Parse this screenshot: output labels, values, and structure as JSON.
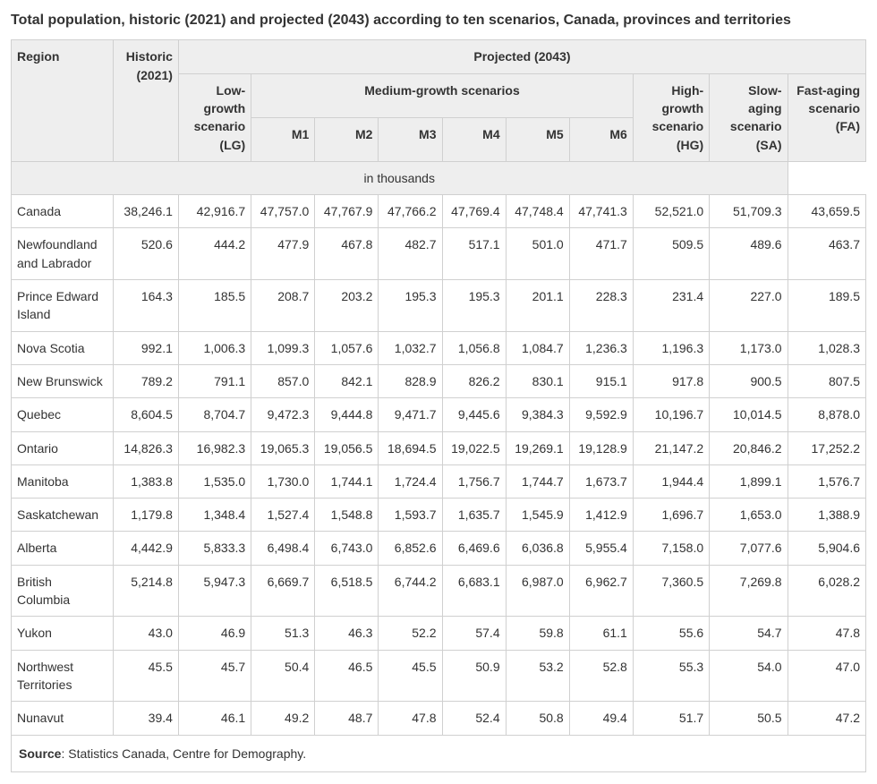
{
  "title": "Total population, historic (2021) and projected (2043) according to ten scenarios, Canada, provinces and territories",
  "headers": {
    "region": "Region",
    "historic": "Historic (2021)",
    "projected": "Projected (2043)",
    "lg": "Low-growth scenario (LG)",
    "medium": "Medium-growth scenarios",
    "m1": "M1",
    "m2": "M2",
    "m3": "M3",
    "m4": "M4",
    "m5": "M5",
    "m6": "M6",
    "hg": "High-growth scenario (HG)",
    "sa": "Slow-aging scenario (SA)",
    "fa": "Fast-aging scenario (FA)",
    "units": "in thousands"
  },
  "rows": [
    {
      "region": "Canada",
      "hist": "38,246.1",
      "lg": "42,916.7",
      "m1": "47,757.0",
      "m2": "47,767.9",
      "m3": "47,766.2",
      "m4": "47,769.4",
      "m5": "47,748.4",
      "m6": "47,741.3",
      "hg": "52,521.0",
      "sa": "51,709.3",
      "fa": "43,659.5"
    },
    {
      "region": "Newfoundland and Labrador",
      "hist": "520.6",
      "lg": "444.2",
      "m1": "477.9",
      "m2": "467.8",
      "m3": "482.7",
      "m4": "517.1",
      "m5": "501.0",
      "m6": "471.7",
      "hg": "509.5",
      "sa": "489.6",
      "fa": "463.7"
    },
    {
      "region": "Prince Edward Island",
      "hist": "164.3",
      "lg": "185.5",
      "m1": "208.7",
      "m2": "203.2",
      "m3": "195.3",
      "m4": "195.3",
      "m5": "201.1",
      "m6": "228.3",
      "hg": "231.4",
      "sa": "227.0",
      "fa": "189.5"
    },
    {
      "region": "Nova Scotia",
      "hist": "992.1",
      "lg": "1,006.3",
      "m1": "1,099.3",
      "m2": "1,057.6",
      "m3": "1,032.7",
      "m4": "1,056.8",
      "m5": "1,084.7",
      "m6": "1,236.3",
      "hg": "1,196.3",
      "sa": "1,173.0",
      "fa": "1,028.3"
    },
    {
      "region": "New Brunswick",
      "hist": "789.2",
      "lg": "791.1",
      "m1": "857.0",
      "m2": "842.1",
      "m3": "828.9",
      "m4": "826.2",
      "m5": "830.1",
      "m6": "915.1",
      "hg": "917.8",
      "sa": "900.5",
      "fa": "807.5"
    },
    {
      "region": "Quebec",
      "hist": "8,604.5",
      "lg": "8,704.7",
      "m1": "9,472.3",
      "m2": "9,444.8",
      "m3": "9,471.7",
      "m4": "9,445.6",
      "m5": "9,384.3",
      "m6": "9,592.9",
      "hg": "10,196.7",
      "sa": "10,014.5",
      "fa": "8,878.0"
    },
    {
      "region": "Ontario",
      "hist": "14,826.3",
      "lg": "16,982.3",
      "m1": "19,065.3",
      "m2": "19,056.5",
      "m3": "18,694.5",
      "m4": "19,022.5",
      "m5": "19,269.1",
      "m6": "19,128.9",
      "hg": "21,147.2",
      "sa": "20,846.2",
      "fa": "17,252.2"
    },
    {
      "region": "Manitoba",
      "hist": "1,383.8",
      "lg": "1,535.0",
      "m1": "1,730.0",
      "m2": "1,744.1",
      "m3": "1,724.4",
      "m4": "1,756.7",
      "m5": "1,744.7",
      "m6": "1,673.7",
      "hg": "1,944.4",
      "sa": "1,899.1",
      "fa": "1,576.7"
    },
    {
      "region": "Saskatchewan",
      "hist": "1,179.8",
      "lg": "1,348.4",
      "m1": "1,527.4",
      "m2": "1,548.8",
      "m3": "1,593.7",
      "m4": "1,635.7",
      "m5": "1,545.9",
      "m6": "1,412.9",
      "hg": "1,696.7",
      "sa": "1,653.0",
      "fa": "1,388.9"
    },
    {
      "region": "Alberta",
      "hist": "4,442.9",
      "lg": "5,833.3",
      "m1": "6,498.4",
      "m2": "6,743.0",
      "m3": "6,852.6",
      "m4": "6,469.6",
      "m5": "6,036.8",
      "m6": "5,955.4",
      "hg": "7,158.0",
      "sa": "7,077.6",
      "fa": "5,904.6"
    },
    {
      "region": "British Columbia",
      "hist": "5,214.8",
      "lg": "5,947.3",
      "m1": "6,669.7",
      "m2": "6,518.5",
      "m3": "6,744.2",
      "m4": "6,683.1",
      "m5": "6,987.0",
      "m6": "6,962.7",
      "hg": "7,360.5",
      "sa": "7,269.8",
      "fa": "6,028.2"
    },
    {
      "region": "Yukon",
      "hist": "43.0",
      "lg": "46.9",
      "m1": "51.3",
      "m2": "46.3",
      "m3": "52.2",
      "m4": "57.4",
      "m5": "59.8",
      "m6": "61.1",
      "hg": "55.6",
      "sa": "54.7",
      "fa": "47.8"
    },
    {
      "region": "Northwest Territories",
      "hist": "45.5",
      "lg": "45.7",
      "m1": "50.4",
      "m2": "46.5",
      "m3": "45.5",
      "m4": "50.9",
      "m5": "53.2",
      "m6": "52.8",
      "hg": "55.3",
      "sa": "54.0",
      "fa": "47.0"
    },
    {
      "region": "Nunavut",
      "hist": "39.4",
      "lg": "46.1",
      "m1": "49.2",
      "m2": "48.7",
      "m3": "47.8",
      "m4": "52.4",
      "m5": "50.8",
      "m6": "49.4",
      "hg": "51.7",
      "sa": "50.5",
      "fa": "47.2"
    }
  ],
  "footer": {
    "source_label": "Source",
    "source_text": ": Statistics Canada, Centre for Demography."
  },
  "style": {
    "header_bg": "#eeeeee",
    "border_color": "#d0d0d0",
    "text_color": "#333333",
    "font_size_body": 14,
    "font_size_title": 16
  }
}
